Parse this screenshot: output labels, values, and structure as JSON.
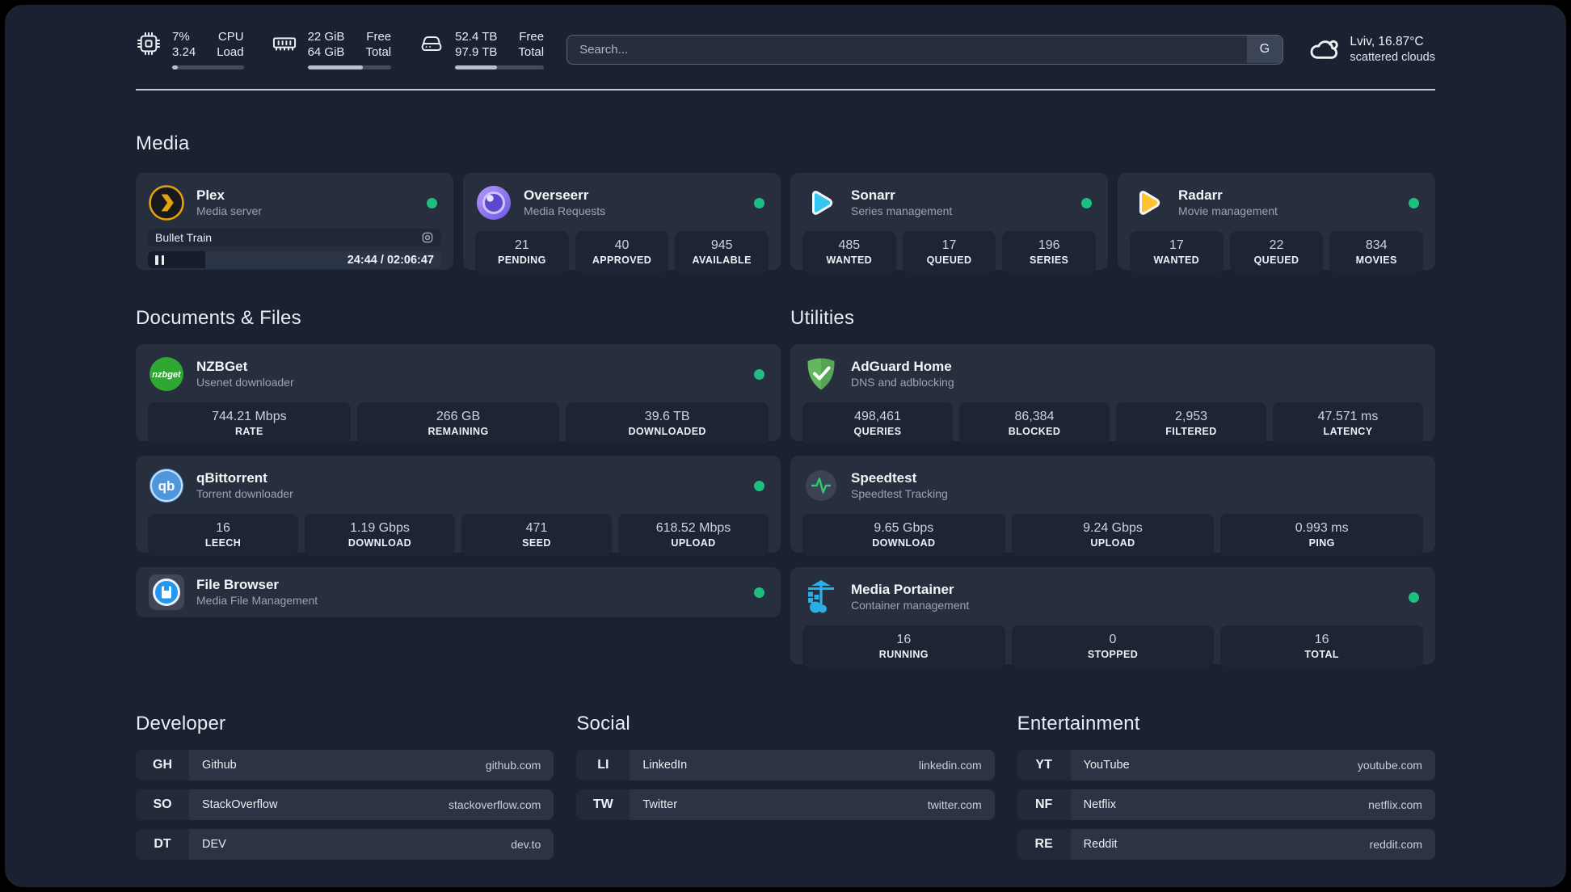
{
  "colors": {
    "page_bg": "#1a2130",
    "card_bg": "#272e3e",
    "stat_bg": "#1e2433",
    "status_online": "#1dbf80",
    "plex_gold": "#e5a00d",
    "sonarr_blue": "#35c5f1",
    "radarr_orange": "#ffc230",
    "nzbget_green": "#2fa832",
    "qbittorrent_blue": "#4f96dc",
    "adguard_green": "#62b75f",
    "speedtest_green": "#2ecc71",
    "portainer_blue": "#29aee6"
  },
  "header": {
    "system": [
      {
        "icon": "cpu-icon",
        "value_top": "7%",
        "value_bottom": "3.24",
        "label_top": "CPU",
        "label_bottom": "Load",
        "progress_pct": 8
      },
      {
        "icon": "memory-icon",
        "value_top": "22 GiB",
        "value_bottom": "64 GiB",
        "label_top": "Free",
        "label_bottom": "Total",
        "progress_pct": 66
      },
      {
        "icon": "disk-icon",
        "value_top": "52.4 TB",
        "value_bottom": "97.9 TB",
        "label_top": "Free",
        "label_bottom": "Total",
        "progress_pct": 47
      }
    ],
    "search": {
      "placeholder": "Search...",
      "engine_button": "G"
    },
    "weather": {
      "icon": "cloud-icon",
      "location": "Lviv, 16.87°C",
      "condition": "scattered clouds"
    }
  },
  "sections": {
    "media": "Media",
    "documents": "Documents & Files",
    "utilities": "Utilities"
  },
  "apps": {
    "plex": {
      "name": "Plex",
      "subtitle": "Media server",
      "online": true,
      "now_playing": {
        "title": "Bullet Train",
        "time_display": "24:44 / 02:06:47",
        "progress_pct": 19.6,
        "state": "paused"
      }
    },
    "overseerr": {
      "name": "Overseerr",
      "subtitle": "Media Requests",
      "online": true,
      "stats": [
        {
          "value": "21",
          "label": "PENDING"
        },
        {
          "value": "40",
          "label": "APPROVED"
        },
        {
          "value": "945",
          "label": "AVAILABLE"
        }
      ]
    },
    "sonarr": {
      "name": "Sonarr",
      "subtitle": "Series management",
      "online": true,
      "stats": [
        {
          "value": "485",
          "label": "WANTED"
        },
        {
          "value": "17",
          "label": "QUEUED"
        },
        {
          "value": "196",
          "label": "SERIES"
        }
      ]
    },
    "radarr": {
      "name": "Radarr",
      "subtitle": "Movie management",
      "online": true,
      "stats": [
        {
          "value": "17",
          "label": "WANTED"
        },
        {
          "value": "22",
          "label": "QUEUED"
        },
        {
          "value": "834",
          "label": "MOVIES"
        }
      ]
    },
    "nzbget": {
      "name": "NZBGet",
      "subtitle": "Usenet downloader",
      "online": true,
      "stats": [
        {
          "value": "744.21 Mbps",
          "label": "RATE"
        },
        {
          "value": "266 GB",
          "label": "REMAINING"
        },
        {
          "value": "39.6 TB",
          "label": "DOWNLOADED"
        }
      ]
    },
    "qbittorrent": {
      "name": "qBittorrent",
      "subtitle": "Torrent downloader",
      "online": true,
      "stats": [
        {
          "value": "16",
          "label": "LEECH"
        },
        {
          "value": "1.19 Gbps",
          "label": "DOWNLOAD"
        },
        {
          "value": "471",
          "label": "SEED"
        },
        {
          "value": "618.52 Mbps",
          "label": "UPLOAD"
        }
      ]
    },
    "filebrowser": {
      "name": "File Browser",
      "subtitle": "Media File Management",
      "online": true
    },
    "adguard": {
      "name": "AdGuard Home",
      "subtitle": "DNS and adblocking",
      "online": null,
      "stats": [
        {
          "value": "498,461",
          "label": "QUERIES"
        },
        {
          "value": "86,384",
          "label": "BLOCKED"
        },
        {
          "value": "2,953",
          "label": "FILTERED"
        },
        {
          "value": "47.571 ms",
          "label": "LATENCY"
        }
      ]
    },
    "speedtest": {
      "name": "Speedtest",
      "subtitle": "Speedtest Tracking",
      "online": null,
      "stats": [
        {
          "value": "9.65 Gbps",
          "label": "DOWNLOAD"
        },
        {
          "value": "9.24 Gbps",
          "label": "UPLOAD"
        },
        {
          "value": "0.993 ms",
          "label": "PING"
        }
      ]
    },
    "portainer": {
      "name": "Media Portainer",
      "subtitle": "Container management",
      "online": true,
      "stats": [
        {
          "value": "16",
          "label": "RUNNING"
        },
        {
          "value": "0",
          "label": "STOPPED"
        },
        {
          "value": "16",
          "label": "TOTAL"
        }
      ]
    }
  },
  "bookmarks": [
    {
      "title": "Developer",
      "links": [
        {
          "abbr": "GH",
          "name": "Github",
          "url": "github.com"
        },
        {
          "abbr": "SO",
          "name": "StackOverflow",
          "url": "stackoverflow.com"
        },
        {
          "abbr": "DT",
          "name": "DEV",
          "url": "dev.to"
        }
      ]
    },
    {
      "title": "Social",
      "links": [
        {
          "abbr": "LI",
          "name": "LinkedIn",
          "url": "linkedin.com"
        },
        {
          "abbr": "TW",
          "name": "Twitter",
          "url": "twitter.com"
        }
      ]
    },
    {
      "title": "Entertainment",
      "links": [
        {
          "abbr": "YT",
          "name": "YouTube",
          "url": "youtube.com"
        },
        {
          "abbr": "NF",
          "name": "Netflix",
          "url": "netflix.com"
        },
        {
          "abbr": "RE",
          "name": "Reddit",
          "url": "reddit.com"
        }
      ]
    }
  ]
}
